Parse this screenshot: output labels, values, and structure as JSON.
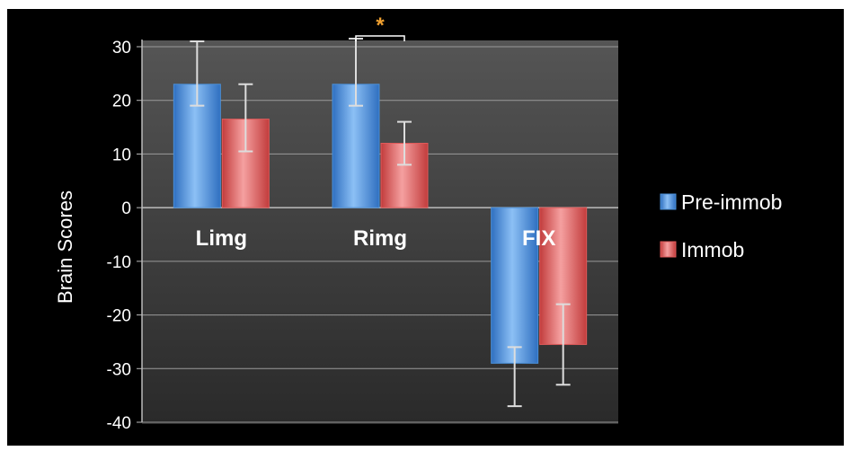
{
  "chart_data": {
    "type": "bar",
    "categories": [
      "Limg",
      "Rimg",
      "FIX"
    ],
    "series": [
      {
        "name": "Pre-immob",
        "values": [
          23,
          23,
          -29
        ],
        "error_low": [
          19,
          19,
          -37
        ],
        "error_high": [
          31,
          31.5,
          -26
        ],
        "color": "#4a90d9"
      },
      {
        "name": "Immob",
        "values": [
          16.5,
          12,
          -25.5
        ],
        "error_low": [
          10.5,
          8,
          -33
        ],
        "error_high": [
          23,
          16,
          -18
        ],
        "color": "#e05a5a"
      }
    ],
    "xlabel": "",
    "ylabel": "Brain Scores",
    "ylim": [
      -40,
      30
    ],
    "yticks": [
      30,
      20,
      10,
      0,
      -10,
      -20,
      -30,
      -40
    ],
    "grid": true,
    "legend_position": "right",
    "significance": {
      "between_categories": [
        "Rimg"
      ],
      "symbol": "*"
    }
  },
  "colors": {
    "background": "#000000",
    "plot_area": "#444444",
    "gridline": "#9a9a9a",
    "text": "#ffffff",
    "error_bar": "#dddddd",
    "significance": "#f0a030"
  }
}
